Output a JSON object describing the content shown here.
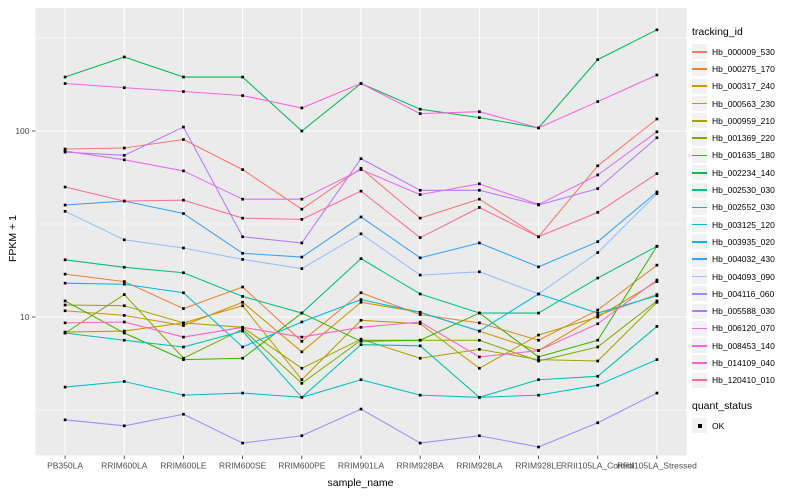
{
  "figure": {
    "background": "#FFFFFF"
  },
  "chart_data": {
    "type": "line",
    "title": "",
    "xlabel": "sample_name",
    "ylabel": "FPKM + 1",
    "y_scale": "log10",
    "y_tick_labels": [
      "100",
      "10"
    ],
    "y_tick_values": [
      100,
      10
    ],
    "y_minor_gridline_values": [
      3.162,
      31.62,
      316.2
    ],
    "ylim": [
      1.8,
      455
    ],
    "grid": "on",
    "panel_background": "#EBEBEB",
    "gridline_color": "#FFFFFF",
    "tick_label_color": "#4D4D4D",
    "tick_mark_color": "#333333",
    "point_marker": "black-square",
    "point_color": "#000000",
    "legend_position": "right",
    "legend_key_background": "#F2F2F2",
    "legend_title": "tracking_id",
    "legend2_title": "quant_status",
    "legend2_items": [
      {
        "label": "OK",
        "marker": "black-square"
      }
    ],
    "categories": [
      "PB350LA",
      "RRIM600LA",
      "RRIM600LE",
      "RRIM600SE",
      "RRIM600PE",
      "RRIM901LA",
      "RRIM928BA",
      "RRIM928LA",
      "RRIM928LE",
      "RRII105LA_Control",
      "RRII105LA_Stressed"
    ],
    "series": [
      {
        "name": "Hb_000009_530",
        "color": "#F8766D",
        "values": [
          80,
          81,
          90,
          62,
          38,
          63,
          34,
          43,
          27,
          65,
          116
        ]
      },
      {
        "name": "Hb_000275_170",
        "color": "#EA8331",
        "values": [
          17,
          15.5,
          11.1,
          14.5,
          7.4,
          13.5,
          10.3,
          9.3,
          7.5,
          10.9,
          19
        ]
      },
      {
        "name": "Hb_000317_240",
        "color": "#D89000",
        "values": [
          10.8,
          10.2,
          9.0,
          12.0,
          6.5,
          12.0,
          10.6,
          8.4,
          6.6,
          10.2,
          13.2
        ]
      },
      {
        "name": "Hb_000563_230",
        "color": "#C09B00",
        "values": [
          8.3,
          8.4,
          9.3,
          11.5,
          4.6,
          9.6,
          9.2,
          5.3,
          8.0,
          10.0,
          15.5
        ]
      },
      {
        "name": "Hb_000959_210",
        "color": "#A3A500",
        "values": [
          11.6,
          11.5,
          9.3,
          8.8,
          5.3,
          7.6,
          6.0,
          6.7,
          5.9,
          5.8,
          12.0
        ]
      },
      {
        "name": "Hb_001369_220",
        "color": "#7CAE00",
        "values": [
          8.2,
          13.2,
          6.0,
          8.6,
          4.4,
          7.5,
          7.5,
          7.5,
          5.8,
          6.9,
          12.2
        ]
      },
      {
        "name": "Hb_001635_180",
        "color": "#39B600",
        "values": [
          12.2,
          8.2,
          5.9,
          6.0,
          10.5,
          7.4,
          7.5,
          10.5,
          6.1,
          7.5,
          24
        ]
      },
      {
        "name": "Hb_002234_140",
        "color": "#00BB4E",
        "values": [
          195,
          250,
          195,
          195,
          100,
          180,
          131,
          118,
          104,
          242,
          350
        ]
      },
      {
        "name": "Hb_002530_030",
        "color": "#00C087",
        "values": [
          20.3,
          18.5,
          17.3,
          12.9,
          10.5,
          20.6,
          13.3,
          10.5,
          10.5,
          16.2,
          24
        ]
      },
      {
        "name": "Hb_002552_030",
        "color": "#00C0AF",
        "values": [
          8.2,
          7.5,
          6.9,
          8.4,
          3.7,
          7.1,
          7.0,
          3.7,
          4.6,
          4.8,
          8.9
        ]
      },
      {
        "name": "Hb_003125_120",
        "color": "#00C1CA",
        "values": [
          4.2,
          4.5,
          3.8,
          3.9,
          3.7,
          4.6,
          3.8,
          3.7,
          3.8,
          4.3,
          5.9
        ]
      },
      {
        "name": "Hb_003935_020",
        "color": "#00B8E5",
        "values": [
          15.2,
          15.0,
          13.5,
          6.9,
          9.4,
          12.4,
          10.6,
          8.4,
          13.3,
          10.5,
          13.0
        ]
      },
      {
        "name": "Hb_004032_430",
        "color": "#35A2FF",
        "values": [
          40,
          42,
          36,
          22,
          21,
          34.5,
          20.8,
          25,
          18.6,
          25.4,
          47
        ]
      },
      {
        "name": "Hb_004093_090",
        "color": "#93BFFF",
        "values": [
          37,
          26,
          23.5,
          20.4,
          18.2,
          28,
          16.8,
          17.5,
          13.3,
          22.2,
          46
        ]
      },
      {
        "name": "Hb_004116_060",
        "color": "#9590FF",
        "values": [
          2.8,
          2.6,
          3.0,
          2.1,
          2.3,
          3.2,
          2.1,
          2.3,
          2.0,
          2.7,
          3.9
        ]
      },
      {
        "name": "Hb_005588_030",
        "color": "#B875FF",
        "values": [
          77,
          74,
          105,
          27,
          25,
          71,
          48,
          48,
          40,
          49,
          92
        ]
      },
      {
        "name": "Hb_006120_070",
        "color": "#E76BF3",
        "values": [
          78,
          70,
          61,
          43,
          43,
          62,
          45.5,
          52,
          40.3,
          58,
          99
        ]
      },
      {
        "name": "Hb_008453_140",
        "color": "#F763E0",
        "values": [
          180,
          171,
          163,
          155,
          133,
          180,
          124,
          127,
          104,
          144,
          200
        ]
      },
      {
        "name": "Hb_014109_040",
        "color": "#FD61CA",
        "values": [
          9.3,
          9.4,
          7.8,
          8.8,
          7.8,
          8.8,
          9.4,
          6.1,
          6.6,
          9.2,
          15.8
        ]
      },
      {
        "name": "Hb_120410_010",
        "color": "#FF6C92",
        "values": [
          50,
          42,
          42.5,
          34,
          33.5,
          47.5,
          26.7,
          38.8,
          27,
          36.5,
          59
        ]
      }
    ]
  }
}
